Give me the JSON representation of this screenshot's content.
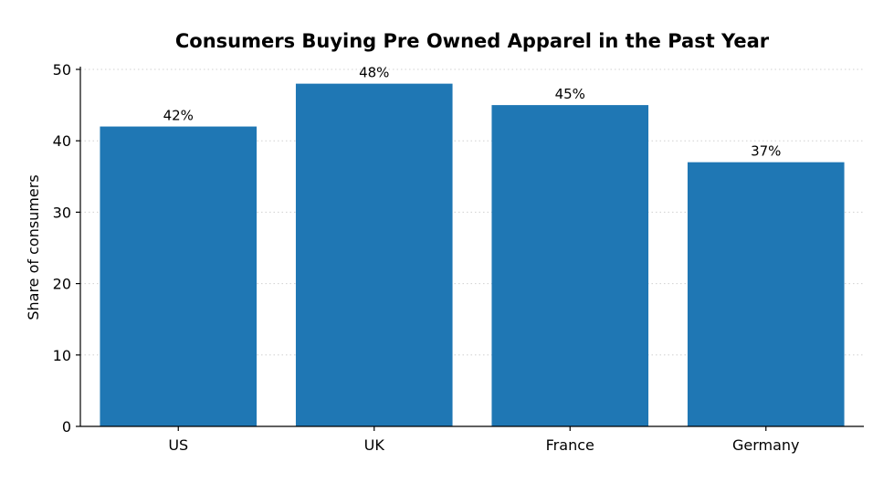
{
  "chart_data": {
    "type": "bar",
    "title": "Consumers Buying Pre Owned Apparel in the Past Year",
    "xlabel": "",
    "ylabel": "Share of consumers",
    "categories": [
      "US",
      "UK",
      "France",
      "Germany"
    ],
    "values": [
      42,
      48,
      45,
      37
    ],
    "data_labels": [
      "42%",
      "48%",
      "45%",
      "37%"
    ],
    "ylim": [
      0,
      50
    ],
    "yticks": [
      0,
      10,
      20,
      30,
      40,
      50
    ],
    "grid": "y-dotted",
    "bar_color": "#1f77b4"
  }
}
